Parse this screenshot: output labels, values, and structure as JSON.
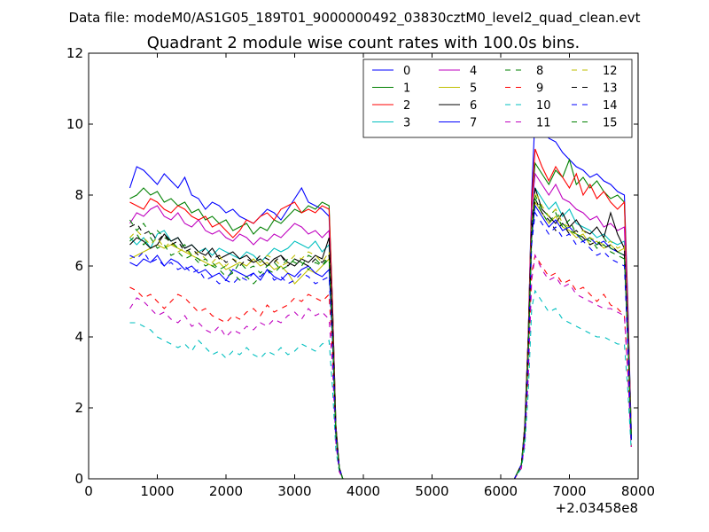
{
  "chart_data": {
    "type": "line",
    "suptitle": "Data file: modeM0/AS1G05_189T01_9000000492_03830cztM0_level2_quad_clean.evt",
    "title": "Quadrant 2 module wise count rates with 100.0s bins.",
    "xlabel": "",
    "ylabel": "",
    "x_offset_label": "+2.03458e8",
    "xlim": [
      0,
      8000
    ],
    "ylim": [
      0,
      12
    ],
    "xticks": [
      "0",
      "1000",
      "2000",
      "3000",
      "4000",
      "5000",
      "6000",
      "7000",
      "8000"
    ],
    "yticks": [
      "0",
      "2",
      "4",
      "6",
      "8",
      "10",
      "12"
    ],
    "grid": false,
    "legend_position": "top-right",
    "x": [
      600,
      700,
      800,
      900,
      1000,
      1100,
      1200,
      1300,
      1400,
      1500,
      1600,
      1700,
      1800,
      1900,
      2000,
      2100,
      2200,
      2300,
      2400,
      2500,
      2600,
      2700,
      2800,
      2900,
      3000,
      3100,
      3200,
      3300,
      3400,
      3500,
      3550,
      3600,
      3650,
      3700,
      3800,
      4500,
      5500,
      6200,
      6300,
      6350,
      6400,
      6450,
      6500,
      6600,
      6700,
      6800,
      6900,
      7000,
      7100,
      7200,
      7300,
      7400,
      7500,
      7600,
      7700,
      7800,
      7850,
      7900
    ],
    "series": [
      {
        "name": "0",
        "color": "#0000ff",
        "dash": "solid",
        "values": [
          8.2,
          8.8,
          8.7,
          8.5,
          8.3,
          8.6,
          8.4,
          8.2,
          8.5,
          8.0,
          7.9,
          7.6,
          7.8,
          7.7,
          7.5,
          7.6,
          7.4,
          7.3,
          7.2,
          7.4,
          7.6,
          7.5,
          7.3,
          7.6,
          7.9,
          8.2,
          7.8,
          7.7,
          7.6,
          7.4,
          5.0,
          1.5,
          0.3,
          0,
          0,
          0,
          0,
          0,
          0.4,
          1.5,
          4.0,
          8.0,
          10.3,
          10.0,
          9.6,
          9.5,
          9.2,
          9.0,
          8.8,
          8.7,
          8.5,
          8.6,
          8.4,
          8.3,
          8.1,
          8.0,
          5.0,
          1.3
        ]
      },
      {
        "name": "1",
        "color": "#008000",
        "dash": "solid",
        "values": [
          7.9,
          8.0,
          8.2,
          8.0,
          8.1,
          7.8,
          7.9,
          7.7,
          7.8,
          7.5,
          7.6,
          7.3,
          7.4,
          7.2,
          7.3,
          7.0,
          7.1,
          7.2,
          6.9,
          7.1,
          7.0,
          7.3,
          7.2,
          7.4,
          7.6,
          7.5,
          7.7,
          7.6,
          7.8,
          7.7,
          5.0,
          1.5,
          0.3,
          0,
          0,
          0,
          0,
          0,
          0.4,
          1.5,
          4.0,
          7.8,
          8.9,
          8.6,
          8.3,
          8.7,
          8.5,
          9.0,
          8.3,
          8.5,
          8.2,
          8.4,
          8.1,
          7.9,
          8.0,
          7.8,
          4.8,
          1.3
        ]
      },
      {
        "name": "2",
        "color": "#ff0000",
        "dash": "solid",
        "values": [
          7.8,
          7.7,
          7.6,
          7.9,
          7.8,
          7.6,
          7.5,
          7.7,
          7.6,
          7.4,
          7.3,
          7.4,
          7.1,
          7.2,
          7.0,
          6.8,
          7.0,
          7.3,
          7.2,
          7.4,
          7.5,
          7.3,
          7.6,
          7.7,
          7.8,
          7.5,
          7.6,
          7.5,
          7.7,
          7.6,
          5.0,
          1.5,
          0.3,
          0,
          0,
          0,
          0,
          0,
          0.4,
          1.5,
          4.0,
          7.8,
          9.3,
          8.8,
          8.4,
          8.8,
          8.5,
          8.2,
          8.6,
          8.0,
          8.3,
          7.9,
          8.1,
          7.8,
          7.6,
          7.8,
          4.7,
          1.3
        ]
      },
      {
        "name": "3",
        "color": "#00bfbf",
        "dash": "solid",
        "values": [
          6.8,
          6.6,
          6.8,
          6.5,
          6.9,
          7.0,
          6.7,
          6.8,
          6.5,
          6.6,
          6.4,
          6.5,
          6.3,
          6.5,
          6.4,
          6.3,
          6.2,
          6.4,
          6.3,
          6.1,
          6.3,
          6.5,
          6.4,
          6.5,
          6.7,
          6.6,
          6.5,
          6.7,
          6.4,
          6.6,
          4.5,
          1.4,
          0.3,
          0,
          0,
          0,
          0,
          0,
          0.4,
          1.4,
          3.6,
          7.0,
          8.2,
          7.9,
          7.6,
          7.8,
          7.4,
          7.6,
          7.2,
          7.1,
          7.0,
          6.8,
          6.9,
          6.7,
          6.6,
          6.7,
          4.2,
          1.2
        ]
      },
      {
        "name": "4",
        "color": "#bf00bf",
        "dash": "solid",
        "values": [
          7.2,
          7.5,
          7.4,
          7.6,
          7.7,
          7.4,
          7.3,
          7.5,
          7.2,
          7.1,
          7.3,
          7.0,
          6.9,
          7.0,
          6.8,
          6.7,
          6.9,
          6.8,
          6.6,
          6.8,
          6.7,
          6.9,
          6.8,
          7.0,
          7.2,
          7.1,
          6.9,
          7.0,
          6.8,
          7.0,
          4.7,
          1.4,
          0.3,
          0,
          0,
          0,
          0,
          0,
          0.4,
          1.4,
          3.8,
          7.6,
          8.6,
          8.3,
          8.0,
          8.3,
          7.9,
          7.8,
          7.6,
          7.5,
          7.3,
          7.4,
          7.1,
          7.2,
          7.0,
          7.1,
          4.5,
          1.2
        ]
      },
      {
        "name": "5",
        "color": "#bfbf00",
        "dash": "solid",
        "values": [
          6.2,
          6.3,
          6.4,
          6.5,
          6.6,
          6.5,
          6.6,
          6.5,
          6.4,
          6.3,
          6.2,
          6.1,
          6.0,
          6.1,
          5.9,
          6.0,
          6.1,
          6.0,
          6.2,
          6.0,
          6.1,
          5.9,
          6.0,
          5.8,
          5.5,
          5.7,
          5.9,
          5.8,
          6.0,
          6.2,
          4.2,
          1.3,
          0.3,
          0,
          0,
          0,
          0,
          0,
          0.4,
          1.3,
          3.5,
          6.8,
          7.8,
          7.5,
          7.2,
          7.4,
          7.1,
          7.0,
          6.8,
          6.9,
          6.6,
          6.7,
          6.5,
          6.6,
          6.4,
          6.5,
          4.0,
          1.1
        ]
      },
      {
        "name": "6",
        "color": "#000000",
        "dash": "solid",
        "values": [
          6.6,
          6.8,
          6.7,
          6.5,
          6.6,
          6.9,
          6.7,
          6.8,
          6.5,
          6.6,
          6.4,
          6.3,
          6.5,
          6.2,
          6.3,
          6.4,
          6.2,
          6.3,
          6.1,
          6.2,
          6.0,
          6.2,
          6.3,
          6.1,
          6.0,
          6.2,
          6.1,
          6.3,
          6.2,
          6.8,
          4.5,
          1.4,
          0.3,
          0,
          0,
          0,
          0,
          0,
          0.4,
          1.4,
          3.7,
          7.2,
          8.2,
          7.6,
          7.4,
          7.2,
          7.5,
          7.1,
          7.3,
          7.0,
          6.9,
          7.1,
          6.8,
          7.5,
          6.9,
          6.5,
          4.2,
          1.2
        ]
      },
      {
        "name": "7",
        "color": "#0000ff",
        "dash": "solid",
        "values": [
          6.1,
          6.0,
          6.2,
          6.1,
          6.3,
          6.0,
          6.2,
          6.1,
          5.9,
          6.0,
          5.8,
          5.9,
          5.7,
          5.8,
          5.6,
          5.9,
          5.8,
          5.7,
          5.8,
          5.6,
          5.9,
          5.7,
          5.6,
          5.8,
          5.7,
          5.9,
          6.0,
          5.8,
          5.7,
          5.9,
          4.0,
          1.2,
          0.3,
          0,
          0,
          0,
          0,
          0,
          0.4,
          1.3,
          3.5,
          6.8,
          7.7,
          7.4,
          7.1,
          7.3,
          7.0,
          7.1,
          6.9,
          6.7,
          6.8,
          6.6,
          6.7,
          6.5,
          6.4,
          6.3,
          3.9,
          1.1
        ]
      },
      {
        "name": "8",
        "color": "#008000",
        "dash": "dashed",
        "values": [
          7.3,
          7.0,
          7.2,
          6.9,
          7.0,
          6.8,
          6.7,
          6.5,
          6.6,
          6.3,
          6.2,
          6.0,
          6.1,
          5.9,
          5.7,
          5.8,
          5.6,
          5.7,
          5.5,
          5.7,
          5.9,
          5.8,
          6.0,
          6.2,
          6.1,
          6.0,
          6.3,
          6.2,
          6.0,
          6.3,
          4.3,
          1.3,
          0.3,
          0,
          0,
          0,
          0,
          0,
          0.4,
          1.3,
          3.6,
          7.0,
          8.0,
          7.6,
          7.4,
          7.6,
          7.2,
          7.0,
          6.9,
          6.7,
          6.8,
          6.5,
          6.6,
          6.4,
          6.3,
          6.2,
          3.9,
          1.1
        ]
      },
      {
        "name": "9",
        "color": "#ff0000",
        "dash": "dashed",
        "values": [
          5.4,
          5.3,
          5.1,
          5.2,
          5.0,
          4.8,
          5.0,
          5.2,
          5.1,
          4.9,
          4.7,
          4.8,
          4.6,
          4.5,
          4.4,
          4.6,
          4.5,
          4.7,
          4.8,
          4.6,
          4.9,
          4.7,
          4.8,
          4.9,
          5.1,
          5.0,
          5.2,
          5.1,
          5.0,
          5.2,
          3.6,
          1.1,
          0.2,
          0,
          0,
          0,
          0,
          0,
          0.3,
          1.1,
          3.0,
          5.8,
          6.3,
          6.0,
          5.7,
          5.8,
          5.5,
          5.6,
          5.3,
          5.4,
          5.2,
          5.0,
          5.2,
          4.9,
          4.8,
          4.6,
          3.0,
          0.9
        ]
      },
      {
        "name": "10",
        "color": "#00bfbf",
        "dash": "dashed",
        "values": [
          4.4,
          4.4,
          4.3,
          4.2,
          4.0,
          3.9,
          3.8,
          3.7,
          3.8,
          3.6,
          3.9,
          3.7,
          3.5,
          3.6,
          3.4,
          3.6,
          3.5,
          3.7,
          3.5,
          3.4,
          3.6,
          3.5,
          3.7,
          3.5,
          3.6,
          3.8,
          3.7,
          3.6,
          3.8,
          3.9,
          2.6,
          0.8,
          0.2,
          0,
          0,
          0,
          0,
          0,
          0.3,
          0.9,
          2.4,
          4.8,
          5.3,
          5.0,
          4.7,
          4.8,
          4.5,
          4.4,
          4.3,
          4.2,
          4.1,
          4.0,
          4.0,
          3.9,
          3.8,
          3.8,
          2.5,
          0.8
        ]
      },
      {
        "name": "11",
        "color": "#bf00bf",
        "dash": "dashed",
        "values": [
          4.8,
          5.1,
          5.0,
          4.8,
          4.6,
          4.7,
          4.5,
          4.4,
          4.6,
          4.3,
          4.4,
          4.2,
          4.1,
          4.3,
          4.0,
          4.2,
          4.1,
          4.3,
          4.2,
          4.4,
          4.3,
          4.5,
          4.4,
          4.6,
          4.7,
          4.5,
          4.8,
          4.6,
          4.7,
          4.5,
          3.2,
          1.0,
          0.2,
          0,
          0,
          0,
          0,
          0,
          0.3,
          1.0,
          2.8,
          5.6,
          6.3,
          5.9,
          5.6,
          5.7,
          5.4,
          5.5,
          5.2,
          5.1,
          5.0,
          4.9,
          4.8,
          4.8,
          4.7,
          4.6,
          3.0,
          0.9
        ]
      },
      {
        "name": "12",
        "color": "#bfbf00",
        "dash": "dashed",
        "values": [
          6.8,
          7.0,
          6.8,
          6.6,
          6.8,
          6.5,
          6.7,
          6.4,
          6.5,
          6.3,
          6.4,
          6.2,
          6.1,
          6.3,
          6.0,
          6.2,
          6.1,
          6.0,
          6.2,
          6.1,
          6.3,
          6.2,
          6.0,
          6.1,
          6.3,
          6.2,
          6.4,
          6.3,
          6.1,
          6.4,
          4.4,
          1.3,
          0.3,
          0,
          0,
          0,
          0,
          0,
          0.4,
          1.3,
          3.6,
          7.1,
          8.1,
          7.7,
          7.4,
          7.6,
          7.2,
          7.1,
          6.9,
          7.0,
          6.8,
          6.7,
          6.6,
          6.7,
          6.5,
          6.6,
          4.1,
          1.2
        ]
      },
      {
        "name": "13",
        "color": "#000000",
        "dash": "dashed",
        "values": [
          7.1,
          7.2,
          6.9,
          7.0,
          6.7,
          6.9,
          6.6,
          6.7,
          6.4,
          6.5,
          6.3,
          6.5,
          6.2,
          6.3,
          6.1,
          6.2,
          6.0,
          6.2,
          6.1,
          6.3,
          6.2,
          6.1,
          6.3,
          6.0,
          6.2,
          6.1,
          6.0,
          6.2,
          6.1,
          6.3,
          4.3,
          1.3,
          0.3,
          0,
          0,
          0,
          0,
          0,
          0.4,
          1.3,
          3.6,
          7.0,
          7.9,
          7.5,
          7.3,
          7.0,
          7.2,
          6.9,
          7.0,
          6.8,
          6.6,
          6.7,
          6.5,
          6.6,
          6.4,
          6.3,
          4.0,
          1.1
        ]
      },
      {
        "name": "14",
        "color": "#0000ff",
        "dash": "dashed",
        "values": [
          6.3,
          6.2,
          6.4,
          6.1,
          6.2,
          6.0,
          6.1,
          5.9,
          6.0,
          5.8,
          5.9,
          5.6,
          5.7,
          5.5,
          5.6,
          5.5,
          5.7,
          5.6,
          5.8,
          5.7,
          5.9,
          5.6,
          5.7,
          5.5,
          5.6,
          5.8,
          5.7,
          5.5,
          5.6,
          5.7,
          3.9,
          1.2,
          0.3,
          0,
          0,
          0,
          0,
          0,
          0.4,
          1.2,
          3.4,
          6.6,
          7.5,
          7.2,
          6.9,
          7.1,
          6.8,
          6.9,
          6.6,
          6.7,
          6.5,
          6.3,
          6.4,
          6.2,
          6.1,
          6.0,
          3.8,
          1.1
        ]
      },
      {
        "name": "15",
        "color": "#008000",
        "dash": "dashed",
        "values": [
          6.7,
          6.9,
          6.6,
          6.8,
          6.5,
          6.6,
          6.3,
          6.4,
          6.2,
          6.3,
          6.1,
          6.2,
          6.0,
          5.9,
          6.0,
          5.8,
          6.1,
          5.9,
          6.0,
          5.8,
          6.0,
          6.1,
          5.9,
          6.0,
          6.2,
          6.1,
          5.9,
          6.1,
          6.0,
          6.2,
          4.2,
          1.3,
          0.3,
          0,
          0,
          0,
          0,
          0,
          0.4,
          1.3,
          3.5,
          6.9,
          7.9,
          7.5,
          7.2,
          7.5,
          7.1,
          7.3,
          6.9,
          6.8,
          6.7,
          6.6,
          6.8,
          6.5,
          6.4,
          6.3,
          4.0,
          1.1
        ]
      }
    ]
  }
}
